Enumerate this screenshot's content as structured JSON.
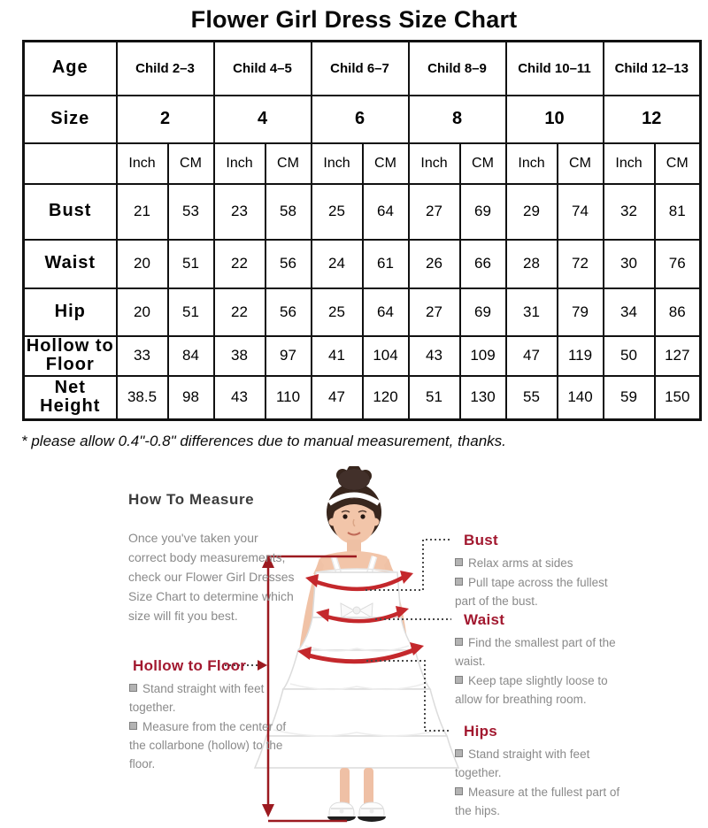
{
  "title": "Flower Girl Dress Size Chart",
  "size_chart": {
    "age_label": "Age",
    "size_label": "Size",
    "age_groups": [
      "Child 2–3",
      "Child 4–5",
      "Child 6–7",
      "Child 8–9",
      "Child 10–11",
      "Child 12–13"
    ],
    "sizes": [
      "2",
      "4",
      "6",
      "8",
      "10",
      "12"
    ],
    "unit_inch": "Inch",
    "unit_cm": "CM",
    "rows": [
      {
        "label": "Bust",
        "values": [
          "21",
          "53",
          "23",
          "58",
          "25",
          "64",
          "27",
          "69",
          "29",
          "74",
          "32",
          "81"
        ]
      },
      {
        "label": "Waist",
        "values": [
          "20",
          "51",
          "22",
          "56",
          "24",
          "61",
          "26",
          "66",
          "28",
          "72",
          "30",
          "76"
        ]
      },
      {
        "label": "Hip",
        "values": [
          "20",
          "51",
          "22",
          "56",
          "25",
          "64",
          "27",
          "69",
          "31",
          "79",
          "34",
          "86"
        ]
      },
      {
        "label": "Hollow to Floor",
        "values": [
          "33",
          "84",
          "38",
          "97",
          "41",
          "104",
          "43",
          "109",
          "47",
          "119",
          "50",
          "127"
        ]
      },
      {
        "label": "Net Height",
        "values": [
          "38.5",
          "98",
          "43",
          "110",
          "47",
          "120",
          "51",
          "130",
          "55",
          "140",
          "59",
          "150"
        ]
      }
    ]
  },
  "note": "* please allow 0.4\"-0.8\" differences due to manual measurement, thanks.",
  "measure_guide": {
    "heading": "How To Measure",
    "intro": "Once you've taken your correct body measurements, check our Flower Girl Dresses Size Chart to determine which size will fit you best.",
    "sections": [
      {
        "id": "bust",
        "label": "Bust",
        "tips": [
          "Relax arms at sides",
          "Pull tape across the fullest part of the bust."
        ]
      },
      {
        "id": "waist",
        "label": "Waist",
        "tips": [
          "Find the smallest part of the waist.",
          "Keep tape slightly loose to allow for breathing room."
        ]
      },
      {
        "id": "hips",
        "label": "Hips",
        "tips": [
          "Stand straight with feet together.",
          "Measure at the fullest part of the hips."
        ]
      },
      {
        "id": "hollow",
        "label": "Hollow to Floor",
        "tips": [
          "Stand straight with feet together.",
          "Measure from the center of the collarbone (hollow) to the floor."
        ]
      }
    ],
    "colors": {
      "accent_red": "#a2182f",
      "measure_line_red": "#9c1a20",
      "arrow_red": "#c4282c",
      "body_text_gray": "#8a8a8a",
      "heading_gray": "#3c3c3c"
    }
  }
}
